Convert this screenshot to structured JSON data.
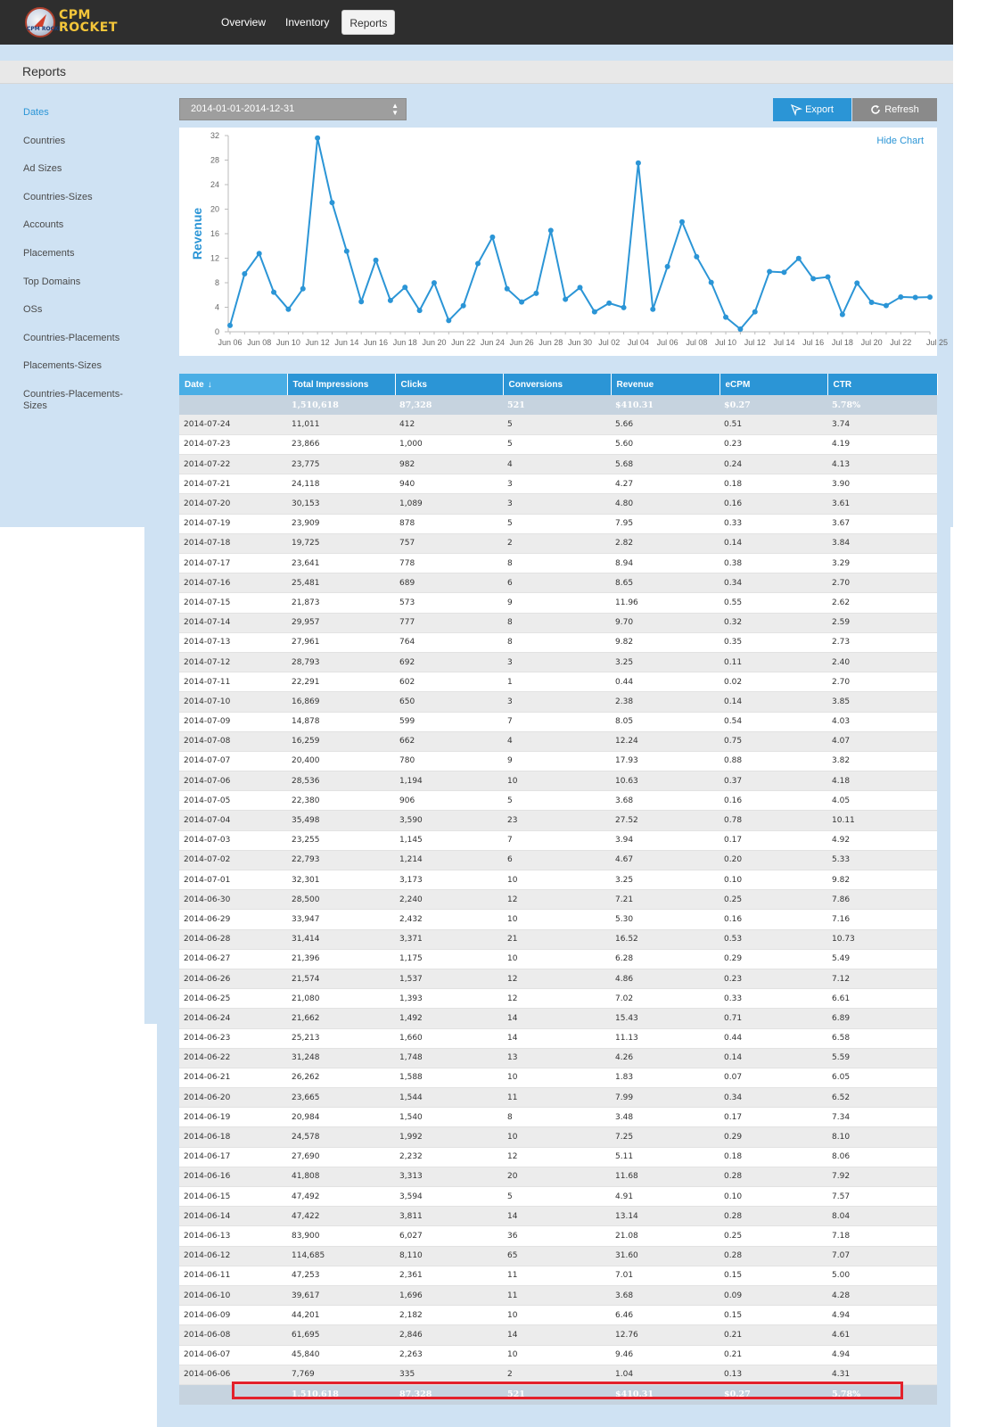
{
  "app": {
    "logo_line1": "CPM",
    "logo_line2": "ROCKET",
    "logo_badge": "CPM ROCKET"
  },
  "nav": {
    "items": [
      {
        "label": "Overview"
      },
      {
        "label": "Inventory"
      },
      {
        "label": "Reports"
      }
    ]
  },
  "page": {
    "title": "Reports"
  },
  "sidebar": {
    "items": [
      {
        "label": "Dates"
      },
      {
        "label": "Countries"
      },
      {
        "label": "Ad Sizes"
      },
      {
        "label": "Countries-Sizes"
      },
      {
        "label": "Accounts"
      },
      {
        "label": "Placements"
      },
      {
        "label": "Top Domains"
      },
      {
        "label": "OSs"
      },
      {
        "label": "Countries-Placements"
      },
      {
        "label": "Placements-Sizes"
      },
      {
        "label": "Countries-Placements-Sizes"
      }
    ]
  },
  "toolbar": {
    "date_range": "2014-01-01-2014-12-31",
    "export_label": "Export",
    "refresh_label": "Refresh",
    "hide_chart_label": "Hide Chart"
  },
  "colors": {
    "accent": "#2b95d6",
    "line": "#2b95d6",
    "highlight": "#e3212b"
  },
  "chart_data": {
    "type": "line",
    "ylabel": "Revenue",
    "ylim": [
      0,
      32
    ],
    "yticks": [
      0,
      4,
      8,
      12,
      16,
      20,
      24,
      28,
      32
    ],
    "xtick_labels": [
      "Jun 06",
      "Jun 08",
      "Jun 10",
      "Jun 12",
      "Jun 14",
      "Jun 16",
      "Jun 18",
      "Jun 20",
      "Jun 22",
      "Jun 24",
      "Jun 26",
      "Jun 28",
      "Jun 30",
      "Jul 02",
      "Jul 04",
      "Jul 06",
      "Jul 08",
      "Jul 10",
      "Jul 12",
      "Jul 14",
      "Jul 16",
      "Jul 18",
      "Jul 20",
      "Jul 22",
      "Jul 25"
    ],
    "x": [
      "2014-06-06",
      "2014-06-07",
      "2014-06-08",
      "2014-06-09",
      "2014-06-10",
      "2014-06-11",
      "2014-06-12",
      "2014-06-13",
      "2014-06-14",
      "2014-06-15",
      "2014-06-16",
      "2014-06-17",
      "2014-06-18",
      "2014-06-19",
      "2014-06-20",
      "2014-06-21",
      "2014-06-22",
      "2014-06-23",
      "2014-06-24",
      "2014-06-25",
      "2014-06-26",
      "2014-06-27",
      "2014-06-28",
      "2014-06-29",
      "2014-06-30",
      "2014-07-01",
      "2014-07-02",
      "2014-07-03",
      "2014-07-04",
      "2014-07-05",
      "2014-07-06",
      "2014-07-07",
      "2014-07-08",
      "2014-07-09",
      "2014-07-10",
      "2014-07-11",
      "2014-07-12",
      "2014-07-13",
      "2014-07-14",
      "2014-07-15",
      "2014-07-16",
      "2014-07-17",
      "2014-07-18",
      "2014-07-19",
      "2014-07-20",
      "2014-07-21",
      "2014-07-22",
      "2014-07-23",
      "2014-07-24"
    ],
    "series": [
      {
        "values": [
          1.04,
          9.46,
          12.76,
          6.46,
          3.68,
          7.01,
          31.6,
          21.08,
          13.14,
          4.91,
          11.68,
          5.11,
          7.25,
          3.48,
          7.99,
          1.83,
          4.26,
          11.13,
          15.43,
          7.02,
          4.86,
          6.28,
          16.52,
          5.3,
          7.21,
          3.25,
          4.67,
          3.94,
          27.52,
          3.68,
          10.63,
          17.93,
          12.24,
          8.05,
          2.38,
          0.44,
          3.25,
          9.82,
          9.7,
          11.96,
          8.65,
          8.94,
          2.82,
          7.95,
          4.8,
          4.27,
          5.68,
          5.6,
          5.66
        ]
      }
    ],
    "grid": false
  },
  "table": {
    "columns": [
      "Date",
      "Total Impressions",
      "Clicks",
      "Conversions",
      "Revenue",
      "eCPM",
      "CTR"
    ],
    "totals": [
      "",
      "1,510,618",
      "87,328",
      "521",
      "$410.31",
      "$0.27",
      "5.78%"
    ],
    "rows": [
      [
        "2014-07-24",
        "11,011",
        "412",
        "5",
        "5.66",
        "0.51",
        "3.74"
      ],
      [
        "2014-07-23",
        "23,866",
        "1,000",
        "5",
        "5.60",
        "0.23",
        "4.19"
      ],
      [
        "2014-07-22",
        "23,775",
        "982",
        "4",
        "5.68",
        "0.24",
        "4.13"
      ],
      [
        "2014-07-21",
        "24,118",
        "940",
        "3",
        "4.27",
        "0.18",
        "3.90"
      ],
      [
        "2014-07-20",
        "30,153",
        "1,089",
        "3",
        "4.80",
        "0.16",
        "3.61"
      ],
      [
        "2014-07-19",
        "23,909",
        "878",
        "5",
        "7.95",
        "0.33",
        "3.67"
      ],
      [
        "2014-07-18",
        "19,725",
        "757",
        "2",
        "2.82",
        "0.14",
        "3.84"
      ],
      [
        "2014-07-17",
        "23,641",
        "778",
        "8",
        "8.94",
        "0.38",
        "3.29"
      ],
      [
        "2014-07-16",
        "25,481",
        "689",
        "6",
        "8.65",
        "0.34",
        "2.70"
      ],
      [
        "2014-07-15",
        "21,873",
        "573",
        "9",
        "11.96",
        "0.55",
        "2.62"
      ],
      [
        "2014-07-14",
        "29,957",
        "777",
        "8",
        "9.70",
        "0.32",
        "2.59"
      ],
      [
        "2014-07-13",
        "27,961",
        "764",
        "8",
        "9.82",
        "0.35",
        "2.73"
      ],
      [
        "2014-07-12",
        "28,793",
        "692",
        "3",
        "3.25",
        "0.11",
        "2.40"
      ],
      [
        "2014-07-11",
        "22,291",
        "602",
        "1",
        "0.44",
        "0.02",
        "2.70"
      ],
      [
        "2014-07-10",
        "16,869",
        "650",
        "3",
        "2.38",
        "0.14",
        "3.85"
      ],
      [
        "2014-07-09",
        "14,878",
        "599",
        "7",
        "8.05",
        "0.54",
        "4.03"
      ],
      [
        "2014-07-08",
        "16,259",
        "662",
        "4",
        "12.24",
        "0.75",
        "4.07"
      ],
      [
        "2014-07-07",
        "20,400",
        "780",
        "9",
        "17.93",
        "0.88",
        "3.82"
      ],
      [
        "2014-07-06",
        "28,536",
        "1,194",
        "10",
        "10.63",
        "0.37",
        "4.18"
      ],
      [
        "2014-07-05",
        "22,380",
        "906",
        "5",
        "3.68",
        "0.16",
        "4.05"
      ],
      [
        "2014-07-04",
        "35,498",
        "3,590",
        "23",
        "27.52",
        "0.78",
        "10.11"
      ],
      [
        "2014-07-03",
        "23,255",
        "1,145",
        "7",
        "3.94",
        "0.17",
        "4.92"
      ],
      [
        "2014-07-02",
        "22,793",
        "1,214",
        "6",
        "4.67",
        "0.20",
        "5.33"
      ],
      [
        "2014-07-01",
        "32,301",
        "3,173",
        "10",
        "3.25",
        "0.10",
        "9.82"
      ],
      [
        "2014-06-30",
        "28,500",
        "2,240",
        "12",
        "7.21",
        "0.25",
        "7.86"
      ],
      [
        "2014-06-29",
        "33,947",
        "2,432",
        "10",
        "5.30",
        "0.16",
        "7.16"
      ],
      [
        "2014-06-28",
        "31,414",
        "3,371",
        "21",
        "16.52",
        "0.53",
        "10.73"
      ],
      [
        "2014-06-27",
        "21,396",
        "1,175",
        "10",
        "6.28",
        "0.29",
        "5.49"
      ],
      [
        "2014-06-26",
        "21,574",
        "1,537",
        "12",
        "4.86",
        "0.23",
        "7.12"
      ],
      [
        "2014-06-25",
        "21,080",
        "1,393",
        "12",
        "7.02",
        "0.33",
        "6.61"
      ],
      [
        "2014-06-24",
        "21,662",
        "1,492",
        "14",
        "15.43",
        "0.71",
        "6.89"
      ],
      [
        "2014-06-23",
        "25,213",
        "1,660",
        "14",
        "11.13",
        "0.44",
        "6.58"
      ],
      [
        "2014-06-22",
        "31,248",
        "1,748",
        "13",
        "4.26",
        "0.14",
        "5.59"
      ],
      [
        "2014-06-21",
        "26,262",
        "1,588",
        "10",
        "1.83",
        "0.07",
        "6.05"
      ],
      [
        "2014-06-20",
        "23,665",
        "1,544",
        "11",
        "7.99",
        "0.34",
        "6.52"
      ],
      [
        "2014-06-19",
        "20,984",
        "1,540",
        "8",
        "3.48",
        "0.17",
        "7.34"
      ],
      [
        "2014-06-18",
        "24,578",
        "1,992",
        "10",
        "7.25",
        "0.29",
        "8.10"
      ],
      [
        "2014-06-17",
        "27,690",
        "2,232",
        "12",
        "5.11",
        "0.18",
        "8.06"
      ],
      [
        "2014-06-16",
        "41,808",
        "3,313",
        "20",
        "11.68",
        "0.28",
        "7.92"
      ],
      [
        "2014-06-15",
        "47,492",
        "3,594",
        "5",
        "4.91",
        "0.10",
        "7.57"
      ],
      [
        "2014-06-14",
        "47,422",
        "3,811",
        "14",
        "13.14",
        "0.28",
        "8.04"
      ],
      [
        "2014-06-13",
        "83,900",
        "6,027",
        "36",
        "21.08",
        "0.25",
        "7.18"
      ],
      [
        "2014-06-12",
        "114,685",
        "8,110",
        "65",
        "31.60",
        "0.28",
        "7.07"
      ],
      [
        "2014-06-11",
        "47,253",
        "2,361",
        "11",
        "7.01",
        "0.15",
        "5.00"
      ],
      [
        "2014-06-10",
        "39,617",
        "1,696",
        "11",
        "3.68",
        "0.09",
        "4.28"
      ],
      [
        "2014-06-09",
        "44,201",
        "2,182",
        "10",
        "6.46",
        "0.15",
        "4.94"
      ],
      [
        "2014-06-08",
        "61,695",
        "2,846",
        "14",
        "12.76",
        "0.21",
        "4.61"
      ],
      [
        "2014-06-07",
        "45,840",
        "2,263",
        "10",
        "9.46",
        "0.21",
        "4.94"
      ],
      [
        "2014-06-06",
        "7,769",
        "335",
        "2",
        "1.04",
        "0.13",
        "4.31"
      ]
    ]
  }
}
